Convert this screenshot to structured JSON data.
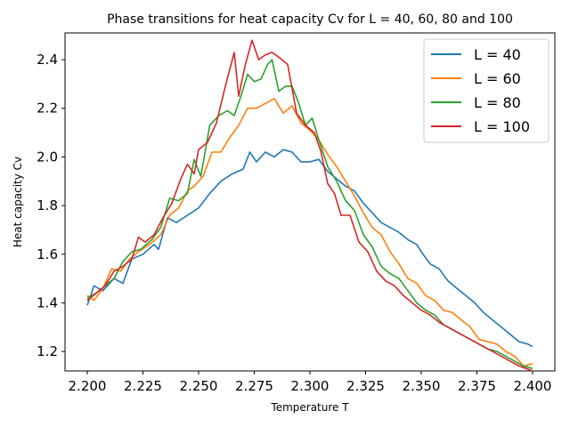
{
  "chart_data": {
    "type": "line",
    "title": "Phase transitions for heat capacity Cv for L = 40, 60, 80 and 100",
    "xlabel": "Temperature T",
    "ylabel": "Heat capacity Cv",
    "xlim": [
      2.19,
      2.41
    ],
    "ylim": [
      1.12,
      2.51
    ],
    "xticks": [
      "2.200",
      "2.225",
      "2.250",
      "2.275",
      "2.300",
      "2.325",
      "2.350",
      "2.375",
      "2.400"
    ],
    "xtick_values": [
      2.2,
      2.225,
      2.25,
      2.275,
      2.3,
      2.325,
      2.35,
      2.375,
      2.4
    ],
    "yticks": [
      "1.2",
      "1.4",
      "1.6",
      "1.8",
      "2.0",
      "2.2",
      "2.4"
    ],
    "ytick_values": [
      1.2,
      1.4,
      1.6,
      1.8,
      2.0,
      2.2,
      2.4
    ],
    "grid": false,
    "legend_position": "top-right",
    "series": [
      {
        "name": "L = 40",
        "color": "#1f77b4",
        "points": [
          [
            2.2,
            1.39
          ],
          [
            2.203,
            1.47
          ],
          [
            2.207,
            1.45
          ],
          [
            2.212,
            1.5
          ],
          [
            2.216,
            1.48
          ],
          [
            2.22,
            1.58
          ],
          [
            2.225,
            1.6
          ],
          [
            2.23,
            1.64
          ],
          [
            2.232,
            1.62
          ],
          [
            2.236,
            1.75
          ],
          [
            2.24,
            1.73
          ],
          [
            2.245,
            1.76
          ],
          [
            2.25,
            1.79
          ],
          [
            2.255,
            1.85
          ],
          [
            2.26,
            1.9
          ],
          [
            2.265,
            1.93
          ],
          [
            2.27,
            1.95
          ],
          [
            2.273,
            2.02
          ],
          [
            2.276,
            1.98
          ],
          [
            2.28,
            2.02
          ],
          [
            2.284,
            2.0
          ],
          [
            2.288,
            2.03
          ],
          [
            2.292,
            2.02
          ],
          [
            2.296,
            1.98
          ],
          [
            2.3,
            1.98
          ],
          [
            2.304,
            1.99
          ],
          [
            2.308,
            1.94
          ],
          [
            2.312,
            1.91
          ],
          [
            2.316,
            1.88
          ],
          [
            2.32,
            1.86
          ],
          [
            2.324,
            1.81
          ],
          [
            2.328,
            1.77
          ],
          [
            2.332,
            1.73
          ],
          [
            2.336,
            1.71
          ],
          [
            2.34,
            1.69
          ],
          [
            2.344,
            1.66
          ],
          [
            2.348,
            1.64
          ],
          [
            2.35,
            1.61
          ],
          [
            2.354,
            1.56
          ],
          [
            2.358,
            1.54
          ],
          [
            2.362,
            1.49
          ],
          [
            2.366,
            1.46
          ],
          [
            2.37,
            1.43
          ],
          [
            2.374,
            1.4
          ],
          [
            2.378,
            1.36
          ],
          [
            2.382,
            1.33
          ],
          [
            2.386,
            1.3
          ],
          [
            2.39,
            1.27
          ],
          [
            2.394,
            1.24
          ],
          [
            2.398,
            1.23
          ],
          [
            2.4,
            1.22
          ]
        ]
      },
      {
        "name": "L = 60",
        "color": "#ff7f0e",
        "points": [
          [
            2.2,
            1.43
          ],
          [
            2.203,
            1.41
          ],
          [
            2.207,
            1.46
          ],
          [
            2.211,
            1.54
          ],
          [
            2.215,
            1.53
          ],
          [
            2.219,
            1.58
          ],
          [
            2.223,
            1.61
          ],
          [
            2.228,
            1.64
          ],
          [
            2.233,
            1.68
          ],
          [
            2.237,
            1.76
          ],
          [
            2.241,
            1.79
          ],
          [
            2.245,
            1.86
          ],
          [
            2.248,
            1.88
          ],
          [
            2.252,
            1.92
          ],
          [
            2.256,
            2.02
          ],
          [
            2.26,
            2.02
          ],
          [
            2.264,
            2.08
          ],
          [
            2.268,
            2.13
          ],
          [
            2.272,
            2.2
          ],
          [
            2.276,
            2.2
          ],
          [
            2.28,
            2.22
          ],
          [
            2.284,
            2.24
          ],
          [
            2.288,
            2.18
          ],
          [
            2.292,
            2.21
          ],
          [
            2.296,
            2.14
          ],
          [
            2.3,
            2.11
          ],
          [
            2.304,
            2.07
          ],
          [
            2.308,
            2.01
          ],
          [
            2.312,
            1.96
          ],
          [
            2.316,
            1.9
          ],
          [
            2.32,
            1.84
          ],
          [
            2.324,
            1.77
          ],
          [
            2.328,
            1.71
          ],
          [
            2.332,
            1.68
          ],
          [
            2.336,
            1.61
          ],
          [
            2.34,
            1.56
          ],
          [
            2.344,
            1.5
          ],
          [
            2.348,
            1.48
          ],
          [
            2.352,
            1.43
          ],
          [
            2.356,
            1.41
          ],
          [
            2.36,
            1.37
          ],
          [
            2.364,
            1.36
          ],
          [
            2.368,
            1.33
          ],
          [
            2.372,
            1.3
          ],
          [
            2.376,
            1.25
          ],
          [
            2.38,
            1.24
          ],
          [
            2.384,
            1.23
          ],
          [
            2.388,
            1.2
          ],
          [
            2.392,
            1.18
          ],
          [
            2.396,
            1.14
          ],
          [
            2.4,
            1.15
          ]
        ]
      },
      {
        "name": "L = 80",
        "color": "#2ca02c",
        "points": [
          [
            2.2,
            1.42
          ],
          [
            2.204,
            1.44
          ],
          [
            2.208,
            1.47
          ],
          [
            2.212,
            1.5
          ],
          [
            2.216,
            1.57
          ],
          [
            2.22,
            1.61
          ],
          [
            2.224,
            1.62
          ],
          [
            2.229,
            1.66
          ],
          [
            2.233,
            1.71
          ],
          [
            2.237,
            1.83
          ],
          [
            2.241,
            1.82
          ],
          [
            2.245,
            1.85
          ],
          [
            2.248,
            1.99
          ],
          [
            2.251,
            1.92
          ],
          [
            2.255,
            2.13
          ],
          [
            2.259,
            2.17
          ],
          [
            2.263,
            2.19
          ],
          [
            2.266,
            2.17
          ],
          [
            2.269,
            2.25
          ],
          [
            2.272,
            2.34
          ],
          [
            2.275,
            2.31
          ],
          [
            2.278,
            2.32
          ],
          [
            2.281,
            2.38
          ],
          [
            2.283,
            2.4
          ],
          [
            2.286,
            2.27
          ],
          [
            2.289,
            2.29
          ],
          [
            2.292,
            2.29
          ],
          [
            2.295,
            2.22
          ],
          [
            2.298,
            2.13
          ],
          [
            2.301,
            2.16
          ],
          [
            2.304,
            2.07
          ],
          [
            2.308,
            1.96
          ],
          [
            2.312,
            1.9
          ],
          [
            2.316,
            1.82
          ],
          [
            2.32,
            1.78
          ],
          [
            2.324,
            1.68
          ],
          [
            2.328,
            1.63
          ],
          [
            2.332,
            1.55
          ],
          [
            2.336,
            1.52
          ],
          [
            2.34,
            1.5
          ],
          [
            2.344,
            1.45
          ],
          [
            2.348,
            1.4
          ],
          [
            2.352,
            1.37
          ],
          [
            2.356,
            1.35
          ],
          [
            2.36,
            1.31
          ],
          [
            2.364,
            1.29
          ],
          [
            2.368,
            1.27
          ],
          [
            2.372,
            1.25
          ],
          [
            2.376,
            1.23
          ],
          [
            2.38,
            1.21
          ],
          [
            2.384,
            1.2
          ],
          [
            2.388,
            1.18
          ],
          [
            2.392,
            1.16
          ],
          [
            2.396,
            1.14
          ],
          [
            2.4,
            1.13
          ]
        ]
      },
      {
        "name": "L = 100",
        "color": "#d62728",
        "points": [
          [
            2.2,
            1.41
          ],
          [
            2.204,
            1.44
          ],
          [
            2.208,
            1.47
          ],
          [
            2.212,
            1.53
          ],
          [
            2.216,
            1.55
          ],
          [
            2.22,
            1.58
          ],
          [
            2.223,
            1.67
          ],
          [
            2.226,
            1.65
          ],
          [
            2.23,
            1.68
          ],
          [
            2.234,
            1.75
          ],
          [
            2.238,
            1.81
          ],
          [
            2.242,
            1.91
          ],
          [
            2.245,
            1.97
          ],
          [
            2.248,
            1.93
          ],
          [
            2.25,
            2.03
          ],
          [
            2.254,
            2.06
          ],
          [
            2.258,
            2.14
          ],
          [
            2.262,
            2.29
          ],
          [
            2.266,
            2.43
          ],
          [
            2.268,
            2.25
          ],
          [
            2.271,
            2.38
          ],
          [
            2.274,
            2.48
          ],
          [
            2.277,
            2.4
          ],
          [
            2.28,
            2.42
          ],
          [
            2.283,
            2.43
          ],
          [
            2.286,
            2.41
          ],
          [
            2.29,
            2.38
          ],
          [
            2.294,
            2.18
          ],
          [
            2.298,
            2.13
          ],
          [
            2.302,
            2.1
          ],
          [
            2.305,
            2.02
          ],
          [
            2.308,
            1.89
          ],
          [
            2.311,
            1.85
          ],
          [
            2.314,
            1.76
          ],
          [
            2.318,
            1.76
          ],
          [
            2.322,
            1.65
          ],
          [
            2.326,
            1.61
          ],
          [
            2.33,
            1.53
          ],
          [
            2.334,
            1.49
          ],
          [
            2.338,
            1.47
          ],
          [
            2.342,
            1.43
          ],
          [
            2.346,
            1.4
          ],
          [
            2.35,
            1.37
          ],
          [
            2.354,
            1.35
          ],
          [
            2.358,
            1.32
          ],
          [
            2.362,
            1.3
          ],
          [
            2.366,
            1.28
          ],
          [
            2.37,
            1.26
          ],
          [
            2.374,
            1.24
          ],
          [
            2.378,
            1.22
          ],
          [
            2.382,
            1.2
          ],
          [
            2.386,
            1.18
          ],
          [
            2.39,
            1.16
          ],
          [
            2.394,
            1.14
          ],
          [
            2.4,
            1.12
          ]
        ]
      }
    ]
  }
}
